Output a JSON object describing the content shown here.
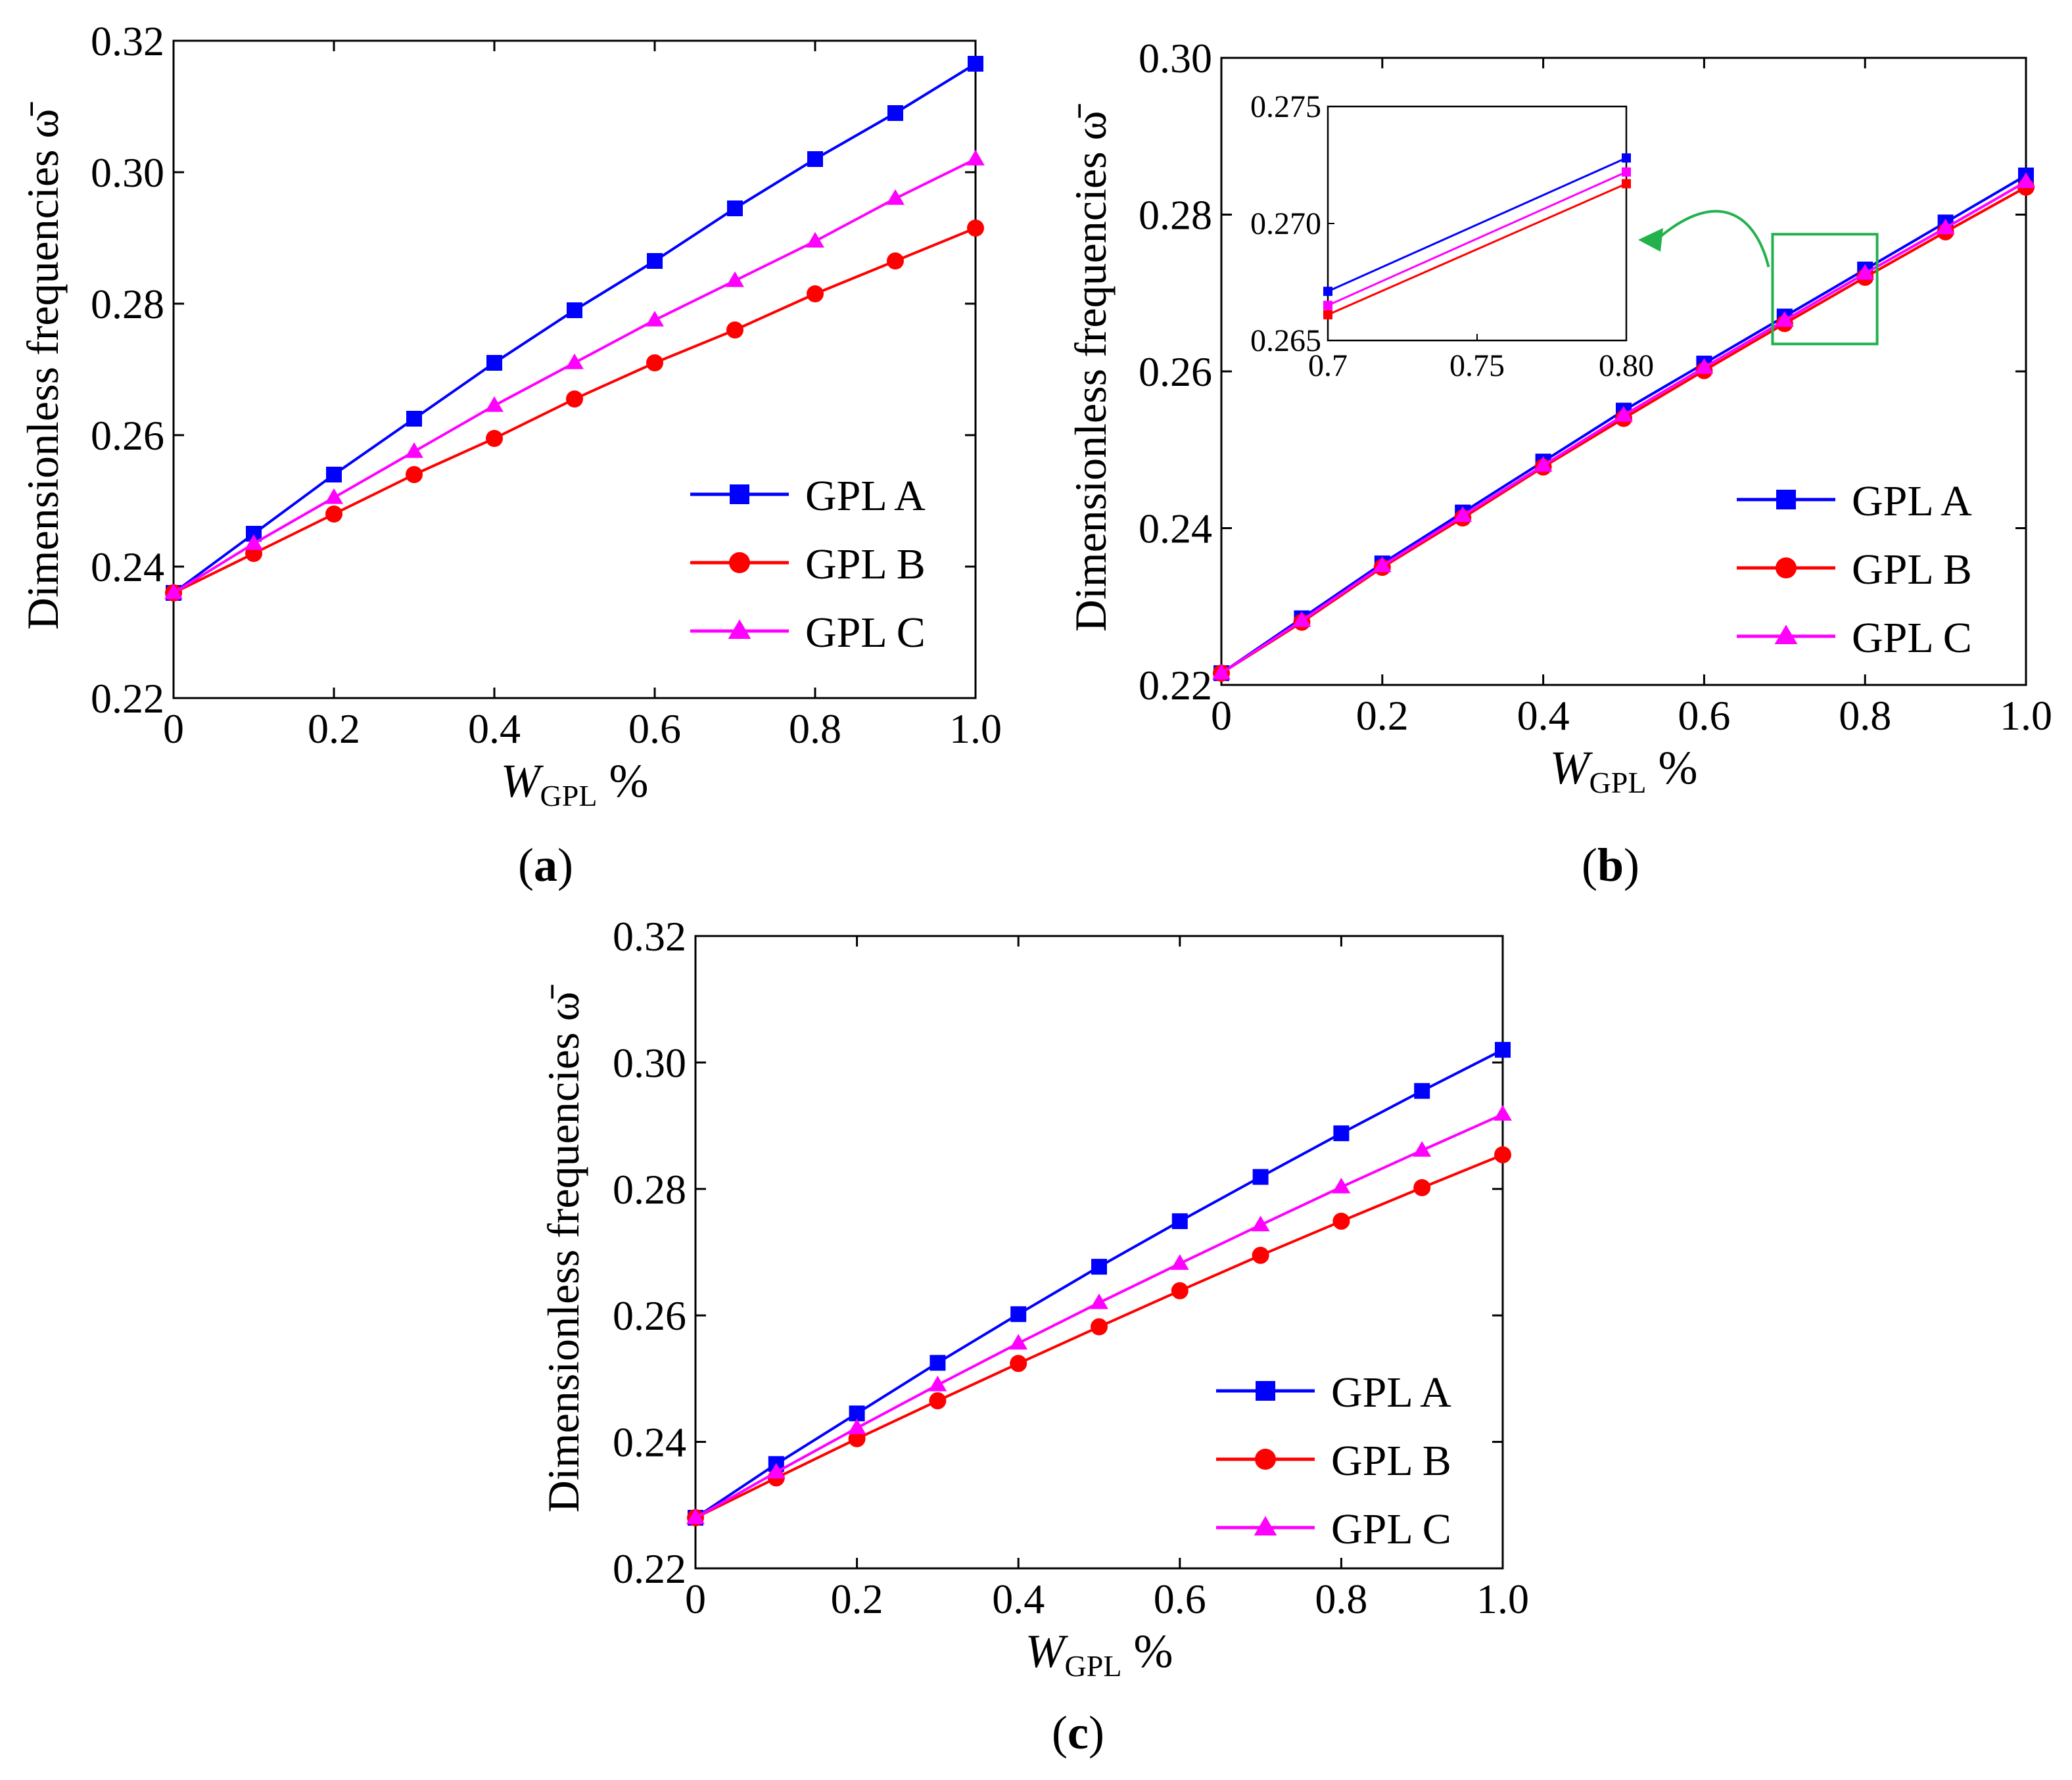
{
  "chart_data": [
    {
      "id": "a",
      "type": "line",
      "caption": "a",
      "title": "",
      "xlabel_main": "W",
      "xlabel_sub": "GPL",
      "xlabel_suffix": " %",
      "ylabel": "Dimensionless frequencies ω̄",
      "xlim": [
        0,
        1.0
      ],
      "ylim": [
        0.22,
        0.32
      ],
      "xticks": [
        "0",
        "0.2",
        "0.4",
        "0.6",
        "0.8",
        "1.0"
      ],
      "yticks": [
        "0.22",
        "0.24",
        "0.26",
        "0.28",
        "0.30",
        "0.32"
      ],
      "legend_position": "bottom-right",
      "x": [
        0,
        0.1,
        0.2,
        0.3,
        0.4,
        0.5,
        0.6,
        0.7,
        0.8,
        0.9,
        1.0
      ],
      "series": [
        {
          "name": "GPL A",
          "color": "#0000ff",
          "marker": "square",
          "values": [
            0.236,
            0.245,
            0.254,
            0.2625,
            0.271,
            0.279,
            0.2865,
            0.2945,
            0.302,
            0.309,
            0.3165
          ]
        },
        {
          "name": "GPL B",
          "color": "#ff0000",
          "marker": "circle",
          "values": [
            0.236,
            0.242,
            0.248,
            0.254,
            0.2595,
            0.2655,
            0.271,
            0.276,
            0.2815,
            0.2865,
            0.2915
          ]
        },
        {
          "name": "GPL C",
          "color": "#ff00ff",
          "marker": "triangle",
          "values": [
            0.236,
            0.2435,
            0.2505,
            0.2575,
            0.2645,
            0.271,
            0.2775,
            0.2835,
            0.2895,
            0.296,
            0.302
          ]
        }
      ]
    },
    {
      "id": "b",
      "type": "line",
      "caption": "b",
      "title": "",
      "xlabel_main": "W",
      "xlabel_sub": "GPL",
      "xlabel_suffix": " %",
      "ylabel": "Dimensionless frequencies ω̄",
      "xlim": [
        0,
        1.0
      ],
      "ylim": [
        0.22,
        0.3
      ],
      "xticks": [
        "0",
        "0.2",
        "0.4",
        "0.6",
        "0.8",
        "1.0"
      ],
      "yticks": [
        "0.22",
        "0.24",
        "0.26",
        "0.28",
        "0.30"
      ],
      "legend_position": "bottom-right",
      "x": [
        0,
        0.1,
        0.2,
        0.3,
        0.4,
        0.5,
        0.6,
        0.7,
        0.8,
        0.9,
        1.0
      ],
      "series": [
        {
          "name": "GPL A",
          "color": "#0000ff",
          "marker": "square",
          "values": [
            0.2215,
            0.2285,
            0.2355,
            0.242,
            0.2485,
            0.255,
            0.261,
            0.267,
            0.273,
            0.279,
            0.285
          ]
        },
        {
          "name": "GPL B",
          "color": "#ff0000",
          "marker": "circle",
          "values": [
            0.2215,
            0.228,
            0.235,
            0.2413,
            0.2478,
            0.254,
            0.2601,
            0.2661,
            0.272,
            0.2778,
            0.2835
          ]
        },
        {
          "name": "GPL C",
          "color": "#ff00ff",
          "marker": "triangle",
          "values": [
            0.2215,
            0.2282,
            0.2352,
            0.2416,
            0.248,
            0.2544,
            0.2605,
            0.2665,
            0.2725,
            0.2783,
            0.2842
          ]
        }
      ],
      "inset": {
        "xlim": [
          0.7,
          0.8
        ],
        "ylim": [
          0.265,
          0.275
        ],
        "xticks": [
          "0.7",
          "0.75",
          "0.80"
        ],
        "yticks": [
          "0.265",
          "0.270",
          "0.275"
        ],
        "x": [
          0.7,
          0.8
        ],
        "series": [
          {
            "name": "GPL A",
            "color": "#0000ff",
            "values": [
              0.2671,
              0.2728
            ]
          },
          {
            "name": "GPL B",
            "color": "#ff0000",
            "values": [
              0.2661,
              0.2717
            ]
          },
          {
            "name": "GPL C",
            "color": "#ff00ff",
            "values": [
              0.2665,
              0.2722
            ]
          }
        ],
        "zoom_box_color": "#22b14c",
        "zoom_box_x": [
          0.685,
          0.815
        ],
        "zoom_box_y": [
          0.2635,
          0.2775
        ]
      }
    },
    {
      "id": "c",
      "type": "line",
      "caption": "c",
      "title": "",
      "xlabel_main": "W",
      "xlabel_sub": "GPL",
      "xlabel_suffix": " %",
      "ylabel": "Dimensionless frequencies ω̄",
      "xlim": [
        0,
        1.0
      ],
      "ylim": [
        0.22,
        0.32
      ],
      "xticks": [
        "0",
        "0.2",
        "0.4",
        "0.6",
        "0.8",
        "1.0"
      ],
      "yticks": [
        "0.22",
        "0.24",
        "0.26",
        "0.28",
        "0.30",
        "0.32"
      ],
      "legend_position": "bottom-right",
      "x": [
        0,
        0.1,
        0.2,
        0.3,
        0.4,
        0.5,
        0.6,
        0.7,
        0.8,
        0.9,
        1.0
      ],
      "series": [
        {
          "name": "GPL A",
          "color": "#0000ff",
          "marker": "square",
          "values": [
            0.228,
            0.2365,
            0.2445,
            0.2525,
            0.2602,
            0.2677,
            0.2749,
            0.2819,
            0.2888,
            0.2955,
            0.302
          ]
        },
        {
          "name": "GPL B",
          "color": "#ff0000",
          "marker": "circle",
          "values": [
            0.228,
            0.2343,
            0.2405,
            0.2465,
            0.2524,
            0.2582,
            0.2639,
            0.2695,
            0.2749,
            0.2802,
            0.2854
          ]
        },
        {
          "name": "GPL C",
          "color": "#ff00ff",
          "marker": "triangle",
          "values": [
            0.228,
            0.2352,
            0.2422,
            0.249,
            0.2556,
            0.262,
            0.2682,
            0.2743,
            0.2803,
            0.2861,
            0.2918
          ]
        }
      ]
    }
  ]
}
